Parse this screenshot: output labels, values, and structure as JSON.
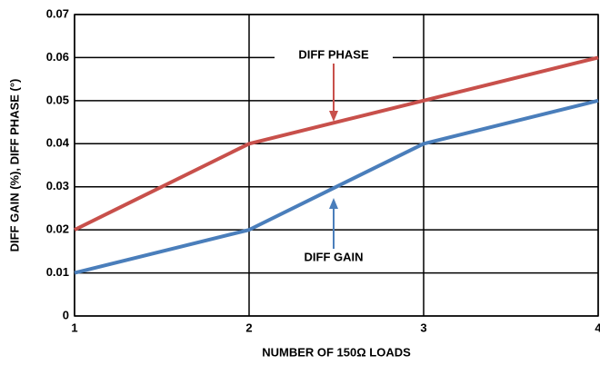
{
  "chart_data": {
    "type": "line",
    "xlabel": "NUMBER OF 150Ω LOADS",
    "ylabel": "DIFF GAIN (%), DIFF PHASE (°)",
    "series": [
      {
        "name": "DIFF PHASE",
        "color": "#c8504b",
        "x": [
          1,
          2,
          3,
          4
        ],
        "values": [
          0.02,
          0.04,
          0.05,
          0.06
        ]
      },
      {
        "name": "DIFF GAIN",
        "color": "#4a7ebb",
        "x": [
          1,
          2,
          2.5,
          3,
          4
        ],
        "values": [
          0.01,
          0.02,
          0.03,
          0.04,
          0.05
        ]
      }
    ],
    "xlim": [
      1,
      4
    ],
    "xticks": [
      1,
      2,
      3,
      4
    ],
    "ylim": [
      0,
      0.07
    ],
    "yticks": [
      0,
      0.01,
      0.02,
      0.03,
      0.04,
      0.05,
      0.06,
      0.07
    ],
    "grid": true
  }
}
